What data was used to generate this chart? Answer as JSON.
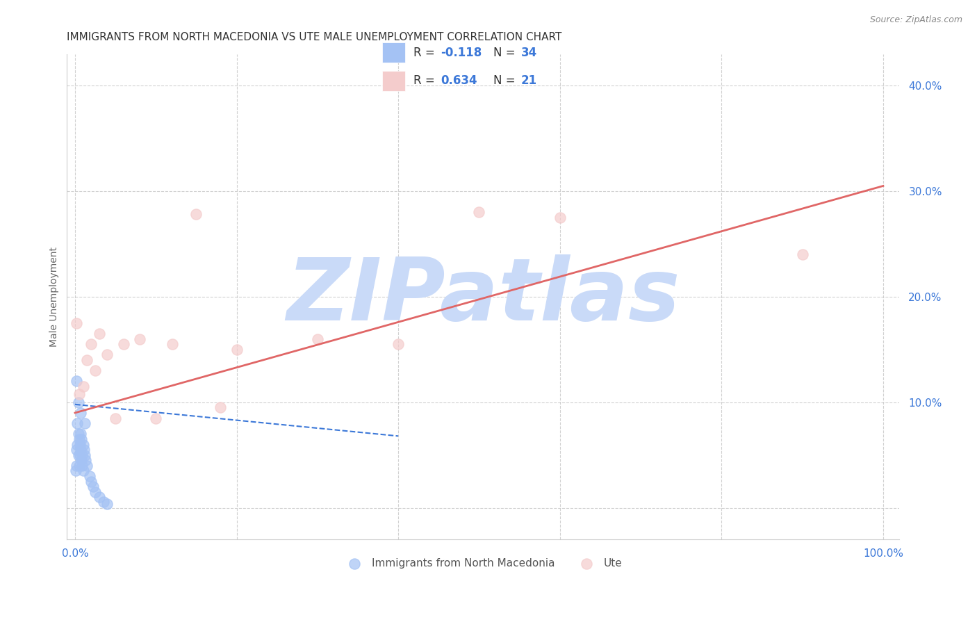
{
  "title": "IMMIGRANTS FROM NORTH MACEDONIA VS UTE MALE UNEMPLOYMENT CORRELATION CHART",
  "source_text": "Source: ZipAtlas.com",
  "ylabel": "Male Unemployment",
  "xlim": [
    -0.01,
    1.02
  ],
  "ylim": [
    -0.03,
    0.43
  ],
  "xticks": [
    0.0,
    0.2,
    0.4,
    0.6,
    0.8,
    1.0
  ],
  "xtick_labels": [
    "0.0%",
    "",
    "",
    "",
    "",
    "100.0%"
  ],
  "yticks": [
    0.0,
    0.1,
    0.2,
    0.3,
    0.4
  ],
  "ytick_labels": [
    "",
    "10.0%",
    "20.0%",
    "30.0%",
    "40.0%"
  ],
  "blue_scatter_x": [
    0.001,
    0.002,
    0.002,
    0.003,
    0.003,
    0.004,
    0.004,
    0.005,
    0.005,
    0.006,
    0.006,
    0.007,
    0.007,
    0.008,
    0.008,
    0.009,
    0.009,
    0.01,
    0.01,
    0.011,
    0.012,
    0.013,
    0.015,
    0.018,
    0.02,
    0.022,
    0.025,
    0.03,
    0.035,
    0.04,
    0.002,
    0.004,
    0.007,
    0.012
  ],
  "blue_scatter_y": [
    0.035,
    0.04,
    0.055,
    0.06,
    0.08,
    0.05,
    0.07,
    0.04,
    0.065,
    0.05,
    0.06,
    0.055,
    0.07,
    0.045,
    0.065,
    0.04,
    0.05,
    0.035,
    0.06,
    0.055,
    0.05,
    0.045,
    0.04,
    0.03,
    0.025,
    0.02,
    0.015,
    0.01,
    0.006,
    0.004,
    0.12,
    0.1,
    0.09,
    0.08
  ],
  "pink_scatter_x": [
    0.002,
    0.005,
    0.01,
    0.015,
    0.02,
    0.025,
    0.03,
    0.04,
    0.05,
    0.06,
    0.08,
    0.1,
    0.12,
    0.15,
    0.18,
    0.2,
    0.3,
    0.4,
    0.5,
    0.6,
    0.9
  ],
  "pink_scatter_y": [
    0.175,
    0.108,
    0.115,
    0.14,
    0.155,
    0.13,
    0.165,
    0.145,
    0.085,
    0.155,
    0.16,
    0.085,
    0.155,
    0.278,
    0.095,
    0.15,
    0.16,
    0.155,
    0.28,
    0.275,
    0.24
  ],
  "blue_R": -0.118,
  "blue_N": 34,
  "pink_R": 0.634,
  "pink_N": 21,
  "blue_line_x": [
    0.0,
    0.4
  ],
  "blue_line_y": [
    0.098,
    0.068
  ],
  "pink_line_x": [
    0.0,
    1.0
  ],
  "pink_line_y": [
    0.09,
    0.305
  ],
  "blue_scatter_color": "#a4c2f4",
  "pink_scatter_color": "#f4cccc",
  "blue_line_color": "#3c78d8",
  "pink_line_color": "#e06666",
  "legend_blue_fill": "#a4c2f4",
  "legend_pink_fill": "#f4cccc",
  "watermark_text": "ZIPatlas",
  "watermark_color": "#c9daf8",
  "background_color": "#ffffff",
  "grid_color": "#cccccc",
  "title_color": "#333333",
  "source_color": "#888888",
  "tick_color": "#3c78d8",
  "ylabel_color": "#666666",
  "title_fontsize": 11,
  "source_fontsize": 9,
  "axis_label_fontsize": 10,
  "tick_fontsize": 11,
  "legend_fontsize": 12,
  "scatter_size": 120
}
